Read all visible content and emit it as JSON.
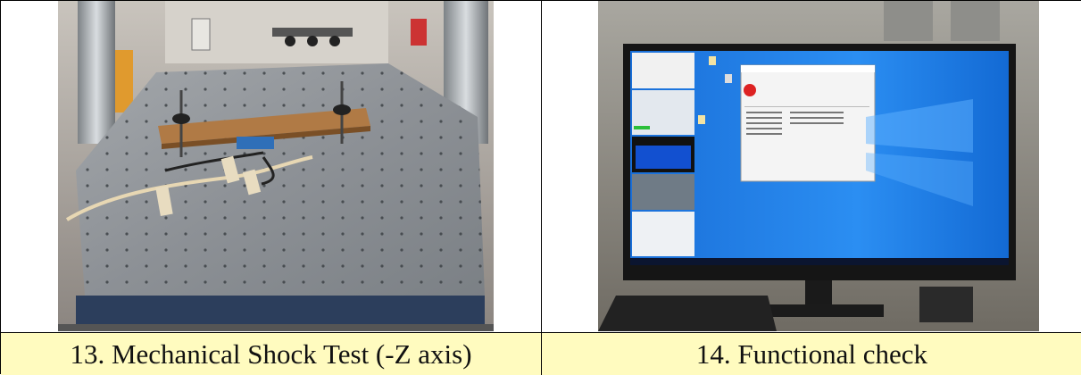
{
  "figures": [
    {
      "caption": "13.  Mechanical Shock Test (-Z axis)",
      "photo_description_icon": "shock-table-photo"
    },
    {
      "caption": "14.  Functional check",
      "photo_description_icon": "monitor-photo"
    }
  ],
  "colors": {
    "caption_background": "#fffbbf",
    "border": "#000000",
    "desktop_blue": "#1f7ae0"
  }
}
